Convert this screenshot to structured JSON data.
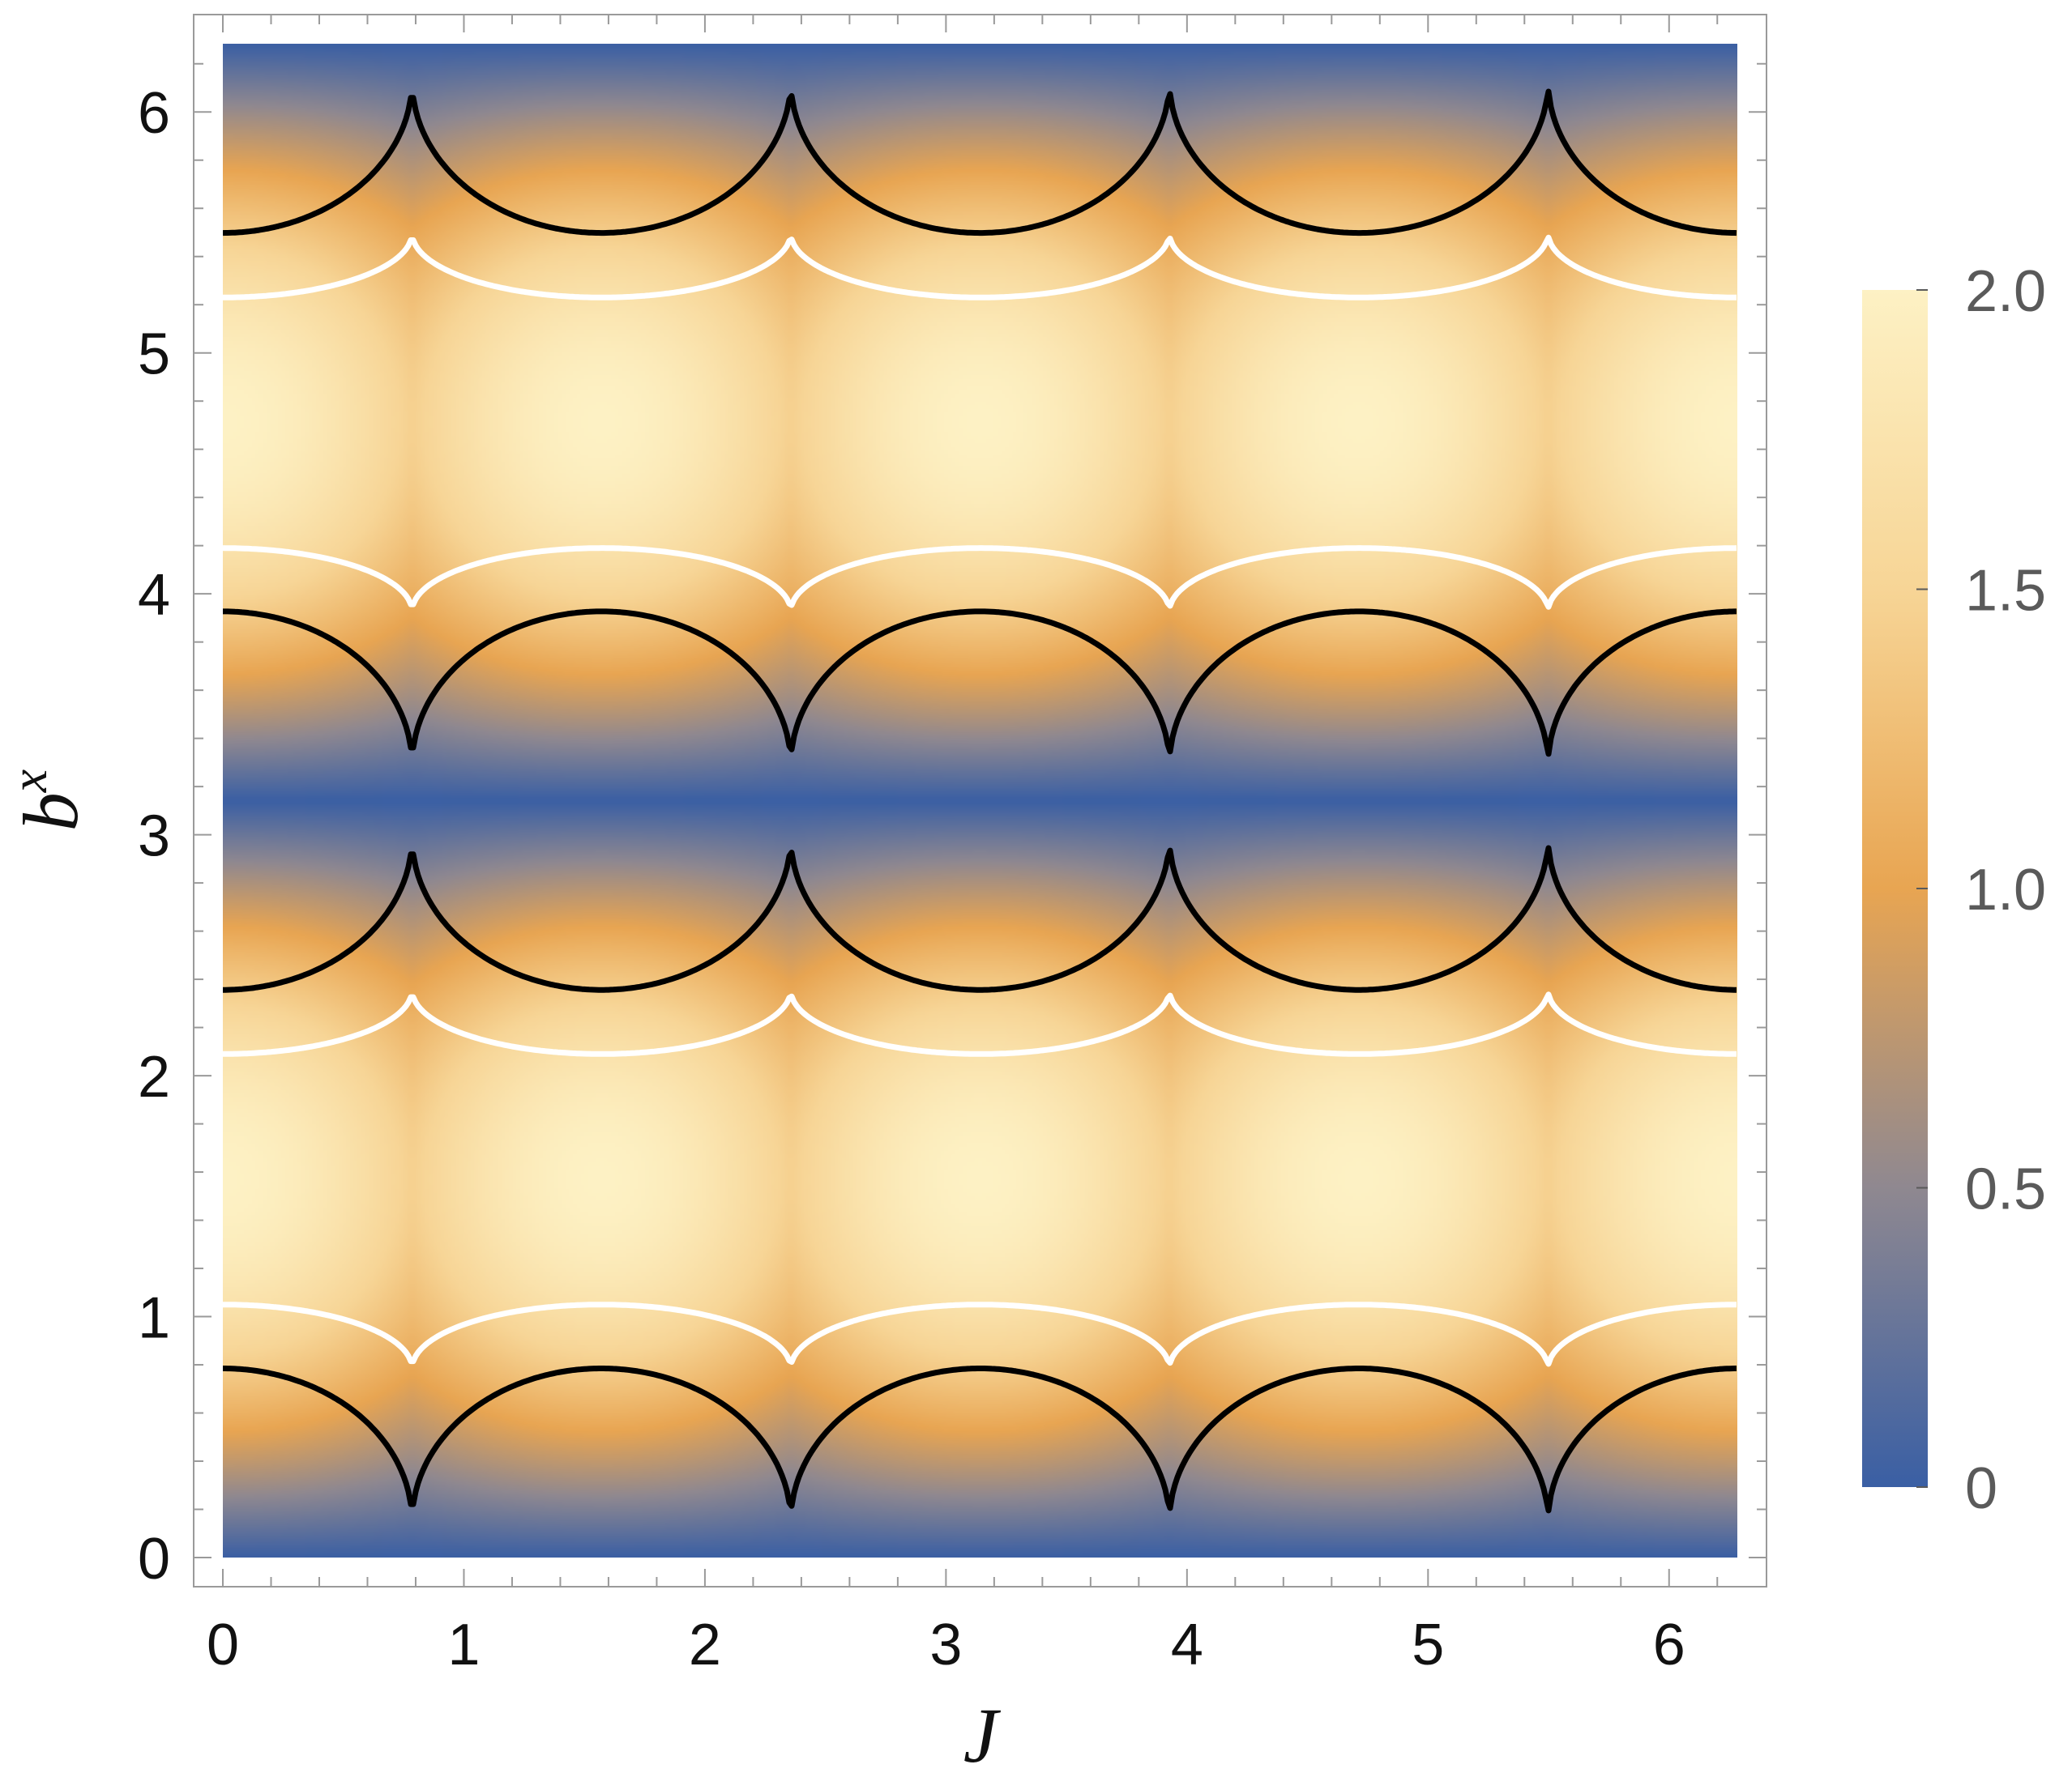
{
  "chart_data": {
    "type": "heatmap",
    "title": "",
    "xlabel": "J",
    "ylabel": "b",
    "ylabel_superscript": "x",
    "xlim": [
      0,
      6.2832
    ],
    "ylim": [
      0,
      6.2832
    ],
    "xticks": [
      0,
      1,
      2,
      3,
      4,
      5,
      6
    ],
    "yticks": [
      0,
      1,
      2,
      3,
      4,
      5,
      6
    ],
    "xtick_labels": [
      "0",
      "1",
      "2",
      "3",
      "4",
      "5",
      "6"
    ],
    "ytick_labels": [
      "0",
      "1",
      "2",
      "3",
      "4",
      "5",
      "6"
    ],
    "grid": false,
    "legend": "colorbar-right",
    "colorbar": {
      "min": 0,
      "max": 2.0,
      "ticks": [
        0,
        0.5,
        1.0,
        1.5,
        2.0
      ],
      "tick_labels": [
        "0",
        "0.5",
        "1.0",
        "1.5",
        "2.0"
      ],
      "colors": [
        "#3a5fa4",
        "#8f8890",
        "#e8a552",
        "#f7d596",
        "#fdf1c4"
      ]
    },
    "field": "2|sin(b^x)| with weak modulation in J, period pi/2 (approx.)",
    "contour_levels": [
      {
        "name": "black contours",
        "color": "#000000",
        "level": 1.4
      },
      {
        "name": "white contours",
        "color": "#ffffff",
        "level": 1.12
      }
    ],
    "cusp_J": [
      0.785,
      2.356,
      3.927,
      5.498
    ],
    "black_contour_bands": [
      {
        "min_b": 0.15,
        "max_b": 0.785
      },
      {
        "min_b": 2.356,
        "max_b": 2.99
      },
      {
        "min_b": 3.29,
        "max_b": 3.927
      },
      {
        "min_b": 5.498,
        "max_b": 6.13
      }
    ],
    "white_contour_bands": [
      {
        "low_b": 0.785,
        "high_b": 1.05
      },
      {
        "low_b": 2.09,
        "high_b": 2.356
      },
      {
        "low_b": 3.927,
        "high_b": 4.19
      },
      {
        "low_b": 5.23,
        "high_b": 5.498
      }
    ]
  }
}
